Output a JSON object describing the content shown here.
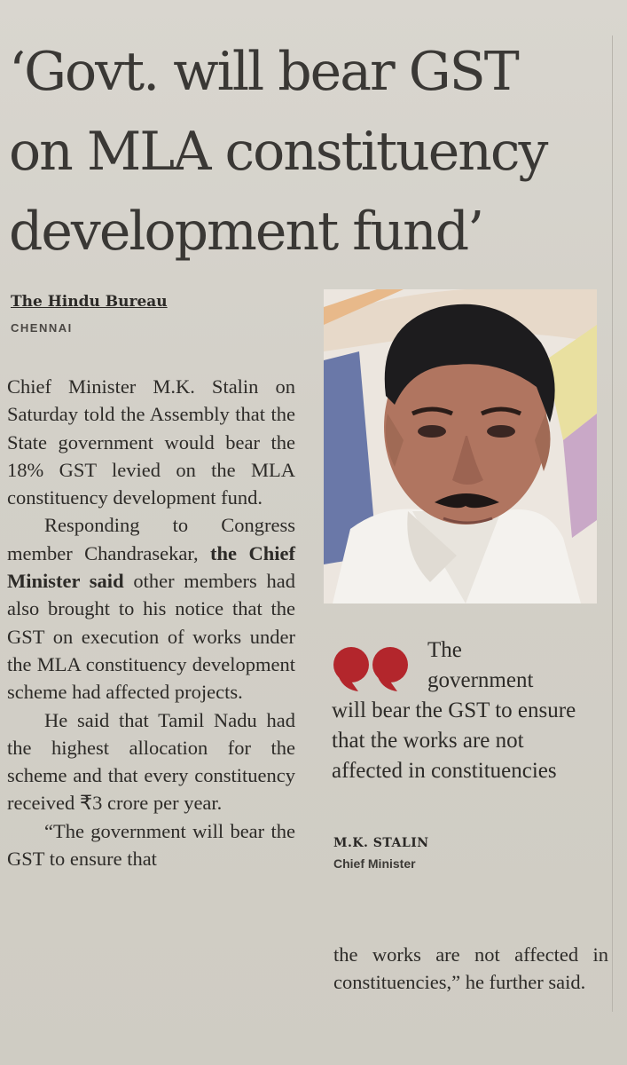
{
  "headline": {
    "line1": "‘Govt. will bear GST",
    "line2": "on MLA constituency",
    "line3": "development fund’"
  },
  "byline": {
    "bureau": "The Hindu Bureau",
    "dateline": "CHENNAI"
  },
  "body": {
    "para1": "Chief Minister M.K. Stalin on Saturday told the Assembly that the State government would bear the 18% GST levied on the MLA constituency development fund.",
    "para2_lead": "Responding to Congress member Chandrasekar,",
    "para2_bold": "the Chief Minister said",
    "para2_rest": "other members had also brought to his notice that the GST on execution of works under the MLA constituency development scheme had affected projects.",
    "para3": "He said that Tamil Nadu had the highest allocation for the scheme and that every constituency received ₹3 crore per year.",
    "para4": "“The government will bear the GST to ensure that",
    "para4_cont": "the works are not affected in constituencies,” he further said."
  },
  "pull_quote": {
    "line1": "The",
    "line2": "government",
    "rest": "will bear the GST to ensure that the works are not affected in constituencies",
    "name": "M.K. STALIN",
    "title": "Chief Minister"
  },
  "colors": {
    "quote_mark": "#b3262c",
    "paper": "#d6d3cb",
    "ink": "#2d2b28"
  },
  "photo": {
    "subject_icon": "portrait-photo"
  }
}
